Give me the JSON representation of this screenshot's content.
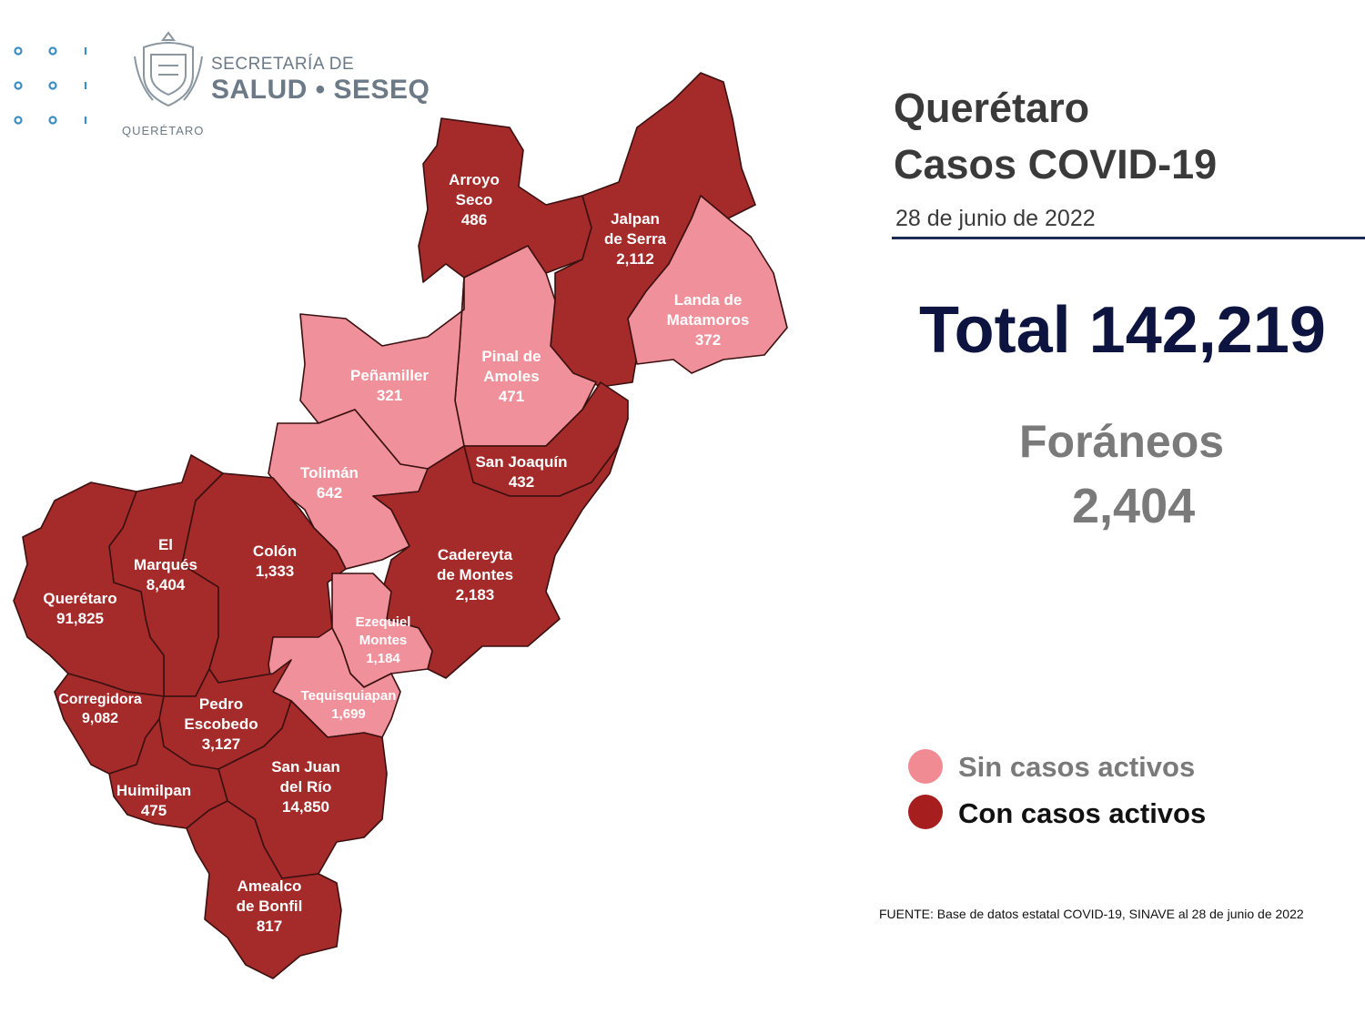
{
  "header": {
    "logo_line1": "SECRETARÍA DE",
    "logo_line2": "SALUD • SESEQ",
    "logo_sub": "QUERÉTARO"
  },
  "title": {
    "line1": "Querétaro",
    "line2": "Casos COVID-19"
  },
  "date": "28 de junio de 2022",
  "total": "Total 142,219",
  "foraneos": {
    "label": "Foráneos",
    "value": "2,404"
  },
  "legend": [
    {
      "label": "Sin casos activos",
      "color": "#f08a93",
      "text_color": "#7a7a7a"
    },
    {
      "label": "Con casos activos",
      "color": "#a61e1e",
      "text_color": "#111111"
    }
  ],
  "source": "FUENTE: Base de datos estatal  COVID-19,  SINAVE  al 28 de junio de 2022",
  "colors": {
    "active": "#a52a2a",
    "inactive": "#f0909a",
    "border": "#3a1010",
    "title": "#3a3a3a",
    "total": "#0d1440"
  },
  "municipalities": [
    {
      "id": "arroyo-seco",
      "lines": [
        "Arroyo",
        "Seco",
        "486"
      ],
      "status": "active"
    },
    {
      "id": "jalpan",
      "lines": [
        "Jalpan",
        "de Serra",
        "2,112"
      ],
      "status": "active"
    },
    {
      "id": "landa",
      "lines": [
        "Landa de",
        "Matamoros",
        "372"
      ],
      "status": "inactive"
    },
    {
      "id": "pinal",
      "lines": [
        "Pinal de",
        "Amoles",
        "471"
      ],
      "status": "inactive"
    },
    {
      "id": "penamiller",
      "lines": [
        "Peñamiller",
        "321"
      ],
      "status": "inactive"
    },
    {
      "id": "san-joaquin",
      "lines": [
        "San Joaquín",
        "432"
      ],
      "status": "active"
    },
    {
      "id": "toliman",
      "lines": [
        "Tolimán",
        "642"
      ],
      "status": "inactive"
    },
    {
      "id": "cadereyta",
      "lines": [
        "Cadereyta",
        "de Montes",
        "2,183"
      ],
      "status": "active"
    },
    {
      "id": "el-marques",
      "lines": [
        "El",
        "Marqués",
        "8,404"
      ],
      "status": "active"
    },
    {
      "id": "colon",
      "lines": [
        "Colón",
        "1,333"
      ],
      "status": "active"
    },
    {
      "id": "queretaro",
      "lines": [
        "Querétaro",
        "91,825"
      ],
      "status": "active"
    },
    {
      "id": "ezequiel",
      "lines": [
        "Ezequiel",
        "Montes",
        "1,184"
      ],
      "status": "inactive"
    },
    {
      "id": "tequisquiapan",
      "lines": [
        "Tequisquiapan",
        "1,699"
      ],
      "status": "inactive"
    },
    {
      "id": "corregidora",
      "lines": [
        "Corregidora",
        "9,082"
      ],
      "status": "active"
    },
    {
      "id": "pedro-escobedo",
      "lines": [
        "Pedro",
        "Escobedo",
        "3,127"
      ],
      "status": "active"
    },
    {
      "id": "san-juan",
      "lines": [
        "San Juan",
        "del Río",
        "14,850"
      ],
      "status": "active"
    },
    {
      "id": "huimilpan",
      "lines": [
        "Huimilpan",
        "475"
      ],
      "status": "active"
    },
    {
      "id": "amealco",
      "lines": [
        "Amealco",
        "de Bonfil",
        "817"
      ],
      "status": "active"
    }
  ]
}
